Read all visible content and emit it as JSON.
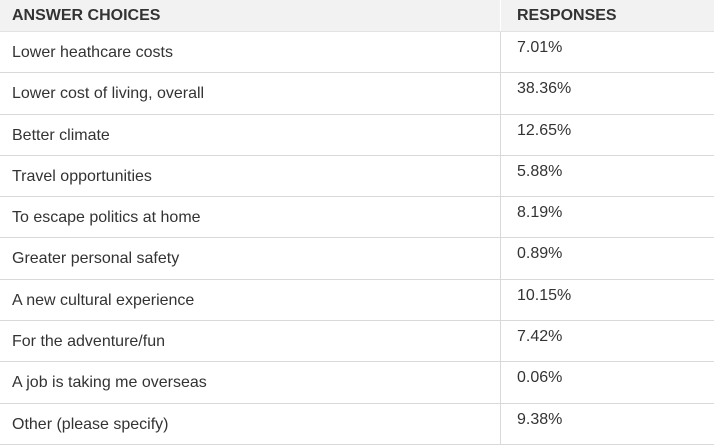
{
  "table": {
    "headers": {
      "choice": "ANSWER CHOICES",
      "responses": "RESPONSES"
    },
    "rows": [
      {
        "choice": "Lower heathcare costs",
        "response": "7.01%"
      },
      {
        "choice": "Lower cost of living, overall",
        "response": "38.36%"
      },
      {
        "choice": "Better climate",
        "response": "12.65%"
      },
      {
        "choice": "Travel opportunities",
        "response": "5.88%"
      },
      {
        "choice": "To escape politics at home",
        "response": "8.19%"
      },
      {
        "choice": "Greater personal safety",
        "response": "0.89%"
      },
      {
        "choice": "A new cultural experience",
        "response": "10.15%"
      },
      {
        "choice": "For the adventure/fun",
        "response": "7.42%"
      },
      {
        "choice": "A job is taking me overseas",
        "response": "0.06%"
      },
      {
        "choice": "Other (please specify)",
        "response": "9.38%"
      }
    ]
  },
  "colors": {
    "header_bg": "#f2f2f2",
    "border": "#d9d9d9",
    "text": "#333333"
  }
}
